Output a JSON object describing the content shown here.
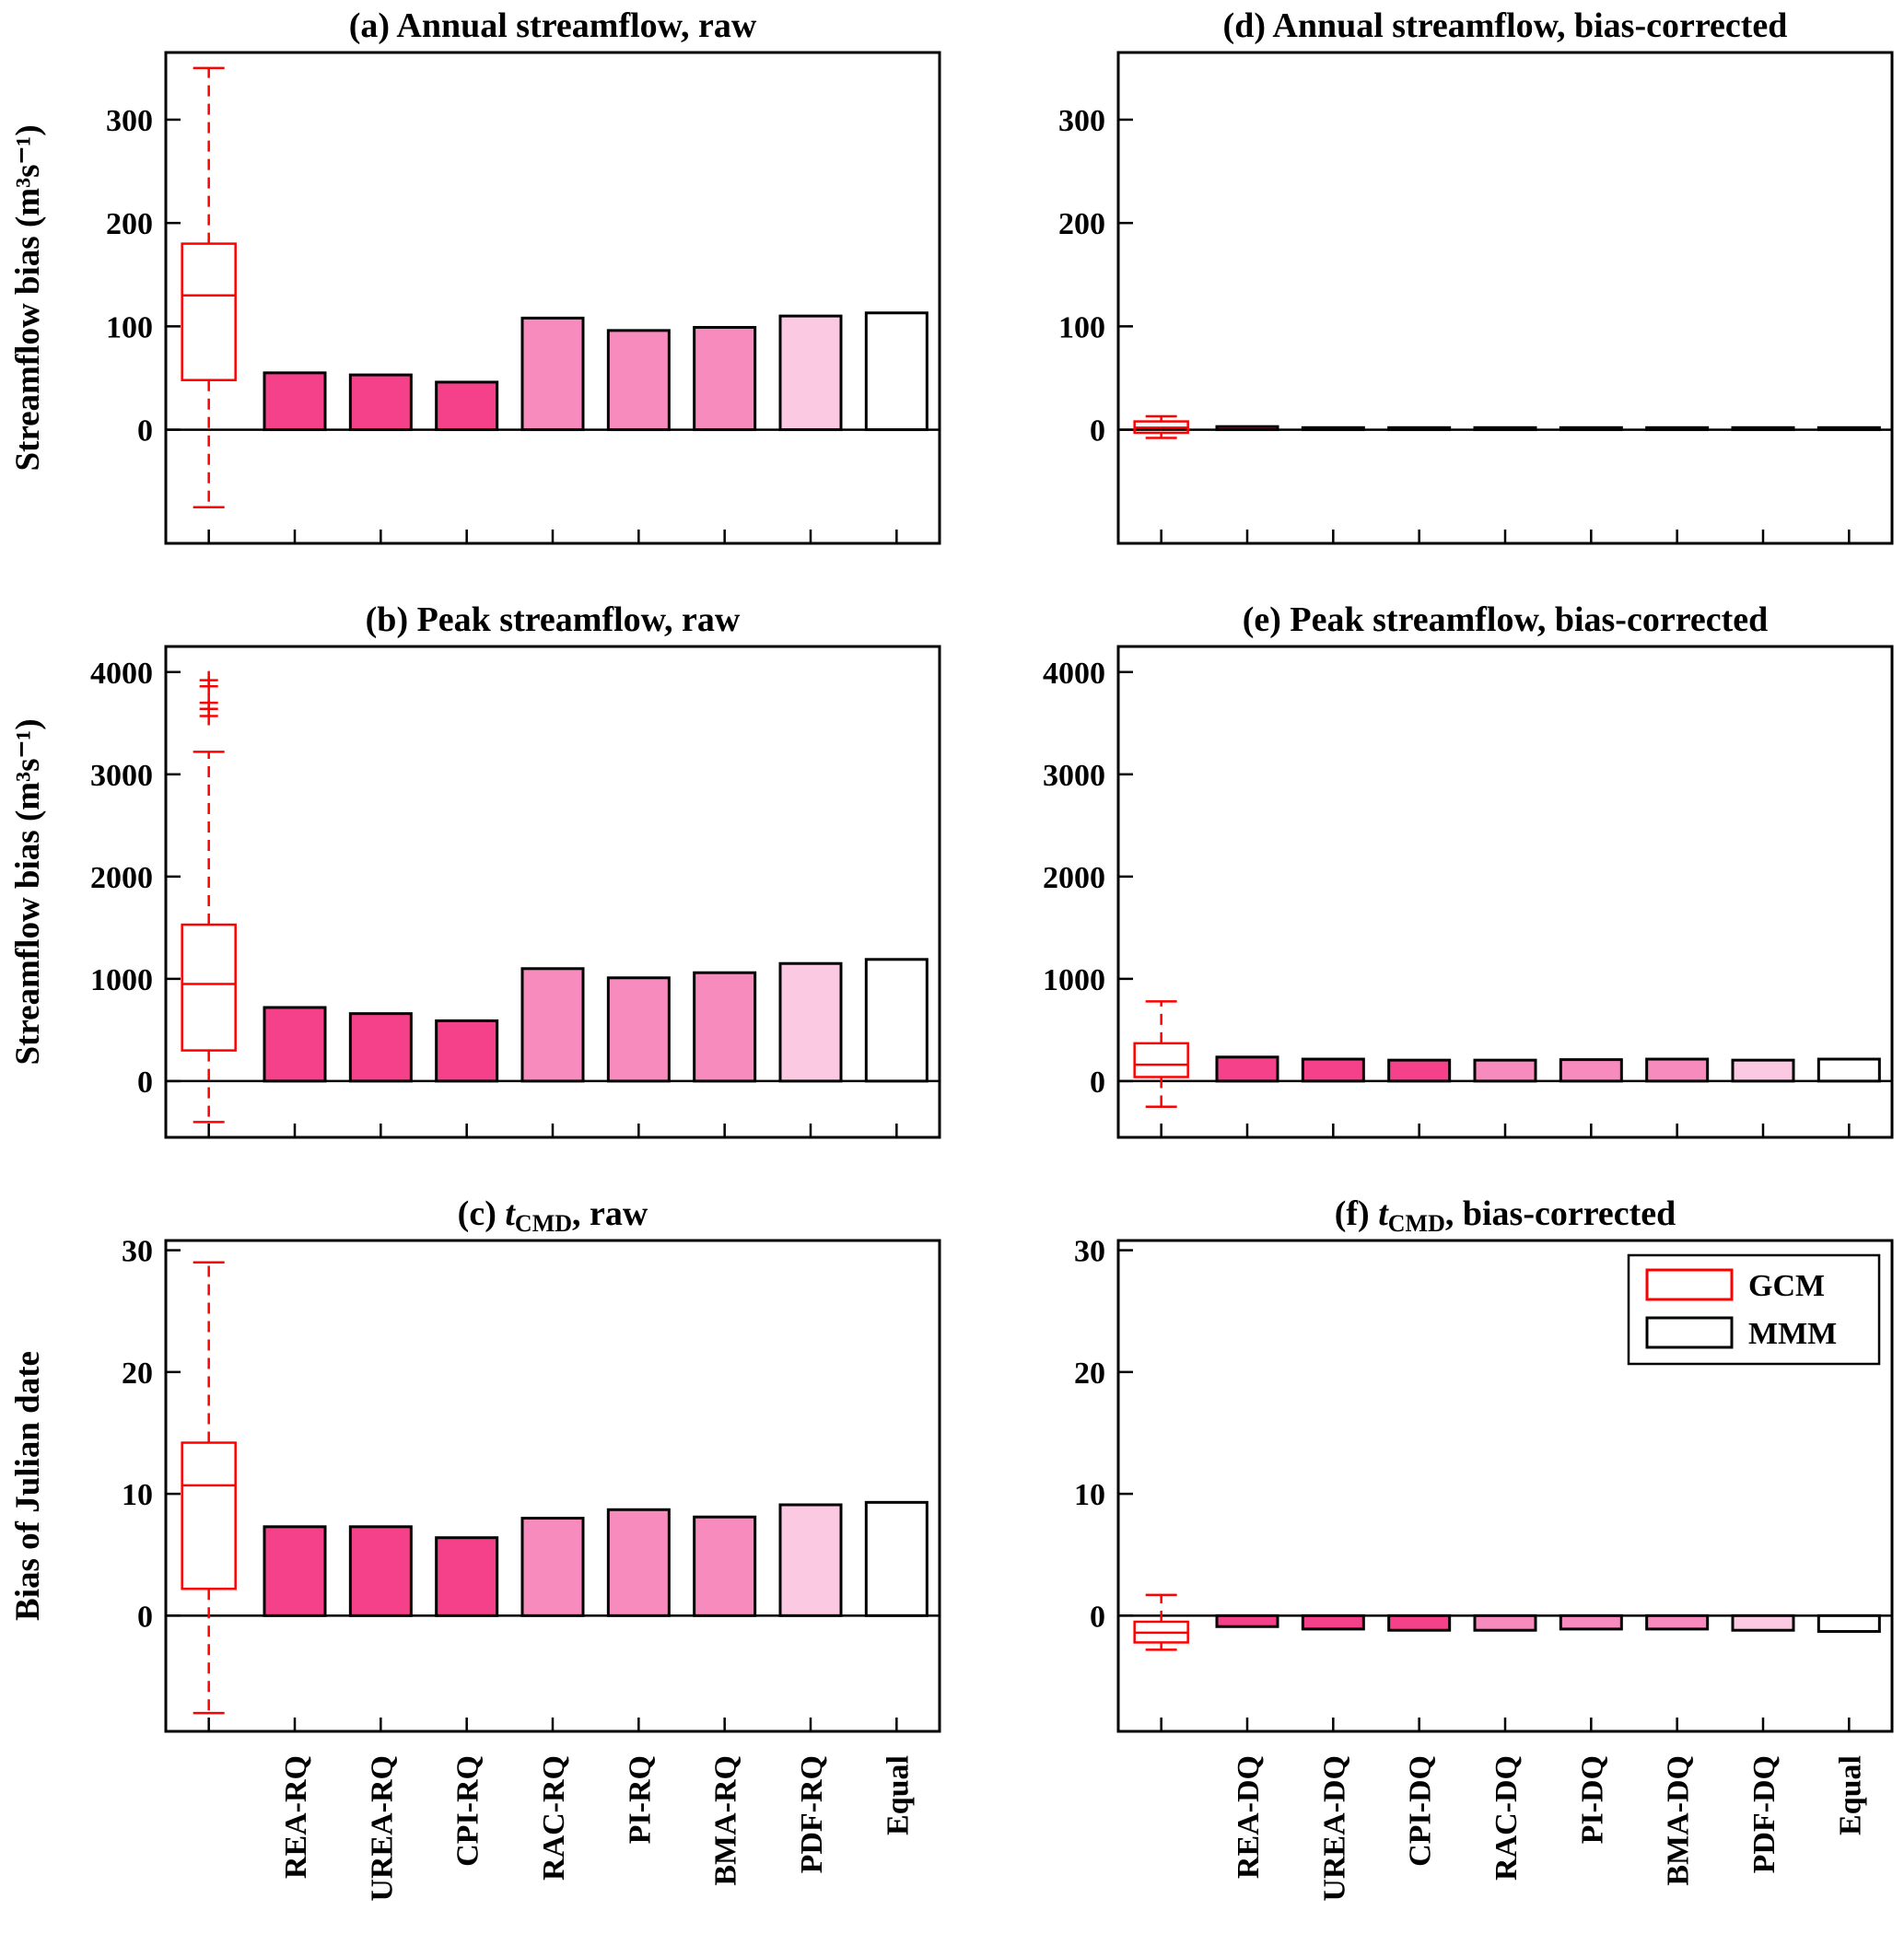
{
  "palette": {
    "background": "#FFFFFF",
    "axis_color": "#000000",
    "box_color": "#FF0000",
    "bar_groups": {
      "dark": "#F4418A",
      "medium": "#F78BBE",
      "light": "#FBCAE2",
      "white": "#FFFFFF"
    }
  },
  "legend": {
    "items": [
      {
        "label": "GCM",
        "color": "#FF0000"
      },
      {
        "label": "MMM",
        "color": "#000000"
      }
    ]
  },
  "chart_data": [
    {
      "id": "a",
      "type": "box+bar",
      "title_segments": [
        {
          "text": "(a) Annual streamflow, raw"
        }
      ],
      "ylabel": "Streamflow bias (m³s⁻¹)",
      "ylim": [
        -110,
        365
      ],
      "yticks": [
        300,
        200,
        100,
        0
      ],
      "box": {
        "whisker_low": -75,
        "q1": 48,
        "median": 130,
        "q3": 180,
        "whisker_high": 350,
        "outliers": []
      },
      "categories": [
        "REA-RQ",
        "UREA-RQ",
        "CPI-RQ",
        "RAC-RQ",
        "PI-RQ",
        "BMA-RQ",
        "PDF-RQ",
        "Equal"
      ],
      "values": [
        55,
        53,
        46,
        108,
        96,
        99,
        110,
        113
      ],
      "bar_groups": [
        "dark",
        "dark",
        "dark",
        "medium",
        "medium",
        "medium",
        "light",
        "white"
      ],
      "show_xlabels": false,
      "show_legend": false
    },
    {
      "id": "d",
      "type": "box+bar",
      "title_segments": [
        {
          "text": "(d) Annual streamflow, bias-corrected"
        }
      ],
      "ylabel": null,
      "ylim": [
        -110,
        365
      ],
      "yticks": [
        300,
        200,
        100,
        0
      ],
      "box": {
        "whisker_low": -8,
        "q1": -3,
        "median": 2,
        "q3": 8,
        "whisker_high": 13,
        "outliers": []
      },
      "categories": [
        "REA-DQ",
        "UREA-DQ",
        "CPI-DQ",
        "RAC-DQ",
        "PI-DQ",
        "BMA-DQ",
        "PDF-DQ",
        "Equal"
      ],
      "values": [
        3,
        2,
        2,
        2,
        2,
        2,
        2,
        2
      ],
      "bar_groups": [
        "dark",
        "dark",
        "dark",
        "medium",
        "medium",
        "medium",
        "light",
        "white"
      ],
      "show_xlabels": false,
      "show_legend": false
    },
    {
      "id": "b",
      "type": "box+bar",
      "title_segments": [
        {
          "text": "(b) Peak streamflow, raw"
        }
      ],
      "ylabel": "Streamflow bias (m³s⁻¹)",
      "ylim": [
        -550,
        4250
      ],
      "yticks": [
        4000,
        3000,
        2000,
        1000,
        0
      ],
      "box": {
        "whisker_low": -400,
        "q1": 300,
        "median": 950,
        "q3": 1530,
        "whisker_high": 3220,
        "outliers": [
          3570,
          3640,
          3700,
          3860,
          3920
        ]
      },
      "categories": [
        "REA-RQ",
        "UREA-RQ",
        "CPI-RQ",
        "RAC-RQ",
        "PI-RQ",
        "BMA-RQ",
        "PDF-RQ",
        "Equal"
      ],
      "values": [
        720,
        660,
        590,
        1100,
        1010,
        1060,
        1150,
        1190
      ],
      "bar_groups": [
        "dark",
        "dark",
        "dark",
        "medium",
        "medium",
        "medium",
        "light",
        "white"
      ],
      "show_xlabels": false,
      "show_legend": false
    },
    {
      "id": "e",
      "type": "box+bar",
      "title_segments": [
        {
          "text": "(e) Peak streamflow, bias-corrected"
        }
      ],
      "ylabel": null,
      "ylim": [
        -550,
        4250
      ],
      "yticks": [
        4000,
        3000,
        2000,
        1000,
        0
      ],
      "box": {
        "whisker_low": -250,
        "q1": 40,
        "median": 160,
        "q3": 370,
        "whisker_high": 780,
        "outliers": []
      },
      "categories": [
        "REA-DQ",
        "UREA-DQ",
        "CPI-DQ",
        "RAC-DQ",
        "PI-DQ",
        "BMA-DQ",
        "PDF-DQ",
        "Equal"
      ],
      "values": [
        235,
        215,
        205,
        205,
        210,
        215,
        205,
        215
      ],
      "bar_groups": [
        "dark",
        "dark",
        "dark",
        "medium",
        "medium",
        "medium",
        "light",
        "white"
      ],
      "show_xlabels": false,
      "show_legend": false
    },
    {
      "id": "c",
      "type": "box+bar",
      "title_segments": [
        {
          "text": "(c) "
        },
        {
          "text": "t",
          "italic": true
        },
        {
          "text": "CMD",
          "sub": true
        },
        {
          "text": ", raw"
        }
      ],
      "ylabel": "Bias of Julian date",
      "ylim": [
        -9.5,
        30.8
      ],
      "yticks": [
        30,
        20,
        10,
        0
      ],
      "box": {
        "whisker_low": -8,
        "q1": 2.2,
        "median": 10.7,
        "q3": 14.2,
        "whisker_high": 29,
        "outliers": []
      },
      "categories": [
        "REA-RQ",
        "UREA-RQ",
        "CPI-RQ",
        "RAC-RQ",
        "PI-RQ",
        "BMA-RQ",
        "PDF-RQ",
        "Equal"
      ],
      "values": [
        7.3,
        7.3,
        6.4,
        8.0,
        8.7,
        8.1,
        9.1,
        9.3
      ],
      "bar_groups": [
        "dark",
        "dark",
        "dark",
        "medium",
        "medium",
        "medium",
        "light",
        "white"
      ],
      "show_xlabels": true,
      "show_legend": false
    },
    {
      "id": "f",
      "type": "box+bar",
      "title_segments": [
        {
          "text": "(f) "
        },
        {
          "text": "t",
          "italic": true
        },
        {
          "text": "CMD",
          "sub": true
        },
        {
          "text": ", bias-corrected"
        }
      ],
      "ylabel": null,
      "ylim": [
        -9.5,
        30.8
      ],
      "yticks": [
        30,
        20,
        10,
        0
      ],
      "box": {
        "whisker_low": -2.8,
        "q1": -2.2,
        "median": -1.4,
        "q3": -0.5,
        "whisker_high": 1.7,
        "outliers": []
      },
      "categories": [
        "REA-DQ",
        "UREA-DQ",
        "CPI-DQ",
        "RAC-DQ",
        "PI-DQ",
        "BMA-DQ",
        "PDF-DQ",
        "Equal"
      ],
      "values": [
        -0.9,
        -1.1,
        -1.2,
        -1.2,
        -1.1,
        -1.1,
        -1.2,
        -1.3
      ],
      "bar_groups": [
        "dark",
        "dark",
        "dark",
        "medium",
        "medium",
        "medium",
        "light",
        "white"
      ],
      "show_xlabels": true,
      "show_legend": true
    }
  ]
}
